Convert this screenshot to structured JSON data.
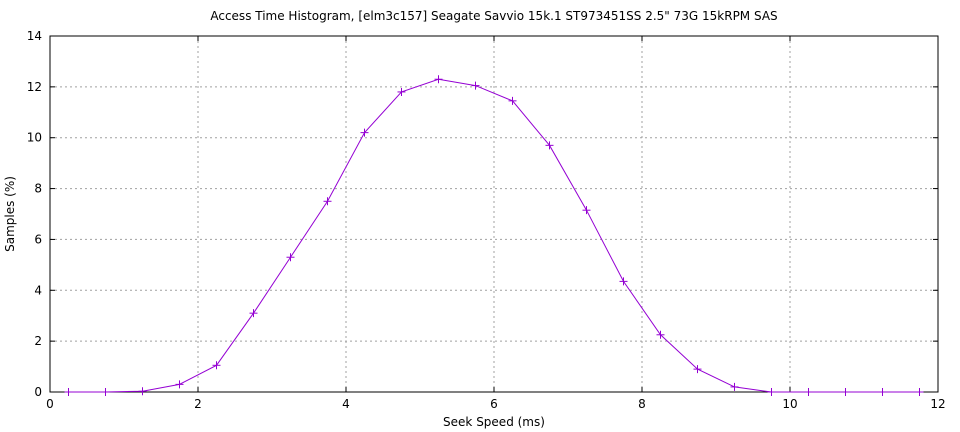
{
  "chart_data": {
    "type": "line",
    "title": "Access Time Histogram, [elm3c157] Seagate Savvio 15k.1 ST973451SS 2.5\" 73G 15kRPM SAS",
    "xlabel": "Seek Speed (ms)",
    "ylabel": "Samples (%)",
    "xlim": [
      0,
      12
    ],
    "ylim": [
      0,
      14
    ],
    "x_ticks": [
      "0",
      "2",
      "4",
      "6",
      "8",
      "10",
      "12"
    ],
    "y_ticks": [
      "0",
      "2",
      "4",
      "6",
      "8",
      "10",
      "12",
      "14"
    ],
    "grid": true,
    "legend": "none",
    "series": [
      {
        "color": "#9400d3",
        "marker": "plus",
        "x": [
          0.25,
          0.75,
          1.25,
          1.75,
          2.25,
          2.75,
          3.25,
          3.75,
          4.25,
          4.75,
          5.25,
          5.75,
          6.25,
          6.75,
          7.25,
          7.75,
          8.25,
          8.75,
          9.25,
          9.75,
          10.25,
          10.75,
          11.25,
          11.75
        ],
        "y": [
          0,
          0,
          0.03,
          0.3,
          1.05,
          3.1,
          5.3,
          7.5,
          10.2,
          11.8,
          12.3,
          12.05,
          11.45,
          9.7,
          7.15,
          4.35,
          2.25,
          0.9,
          0.2,
          0,
          0,
          0,
          0,
          0
        ]
      }
    ]
  }
}
